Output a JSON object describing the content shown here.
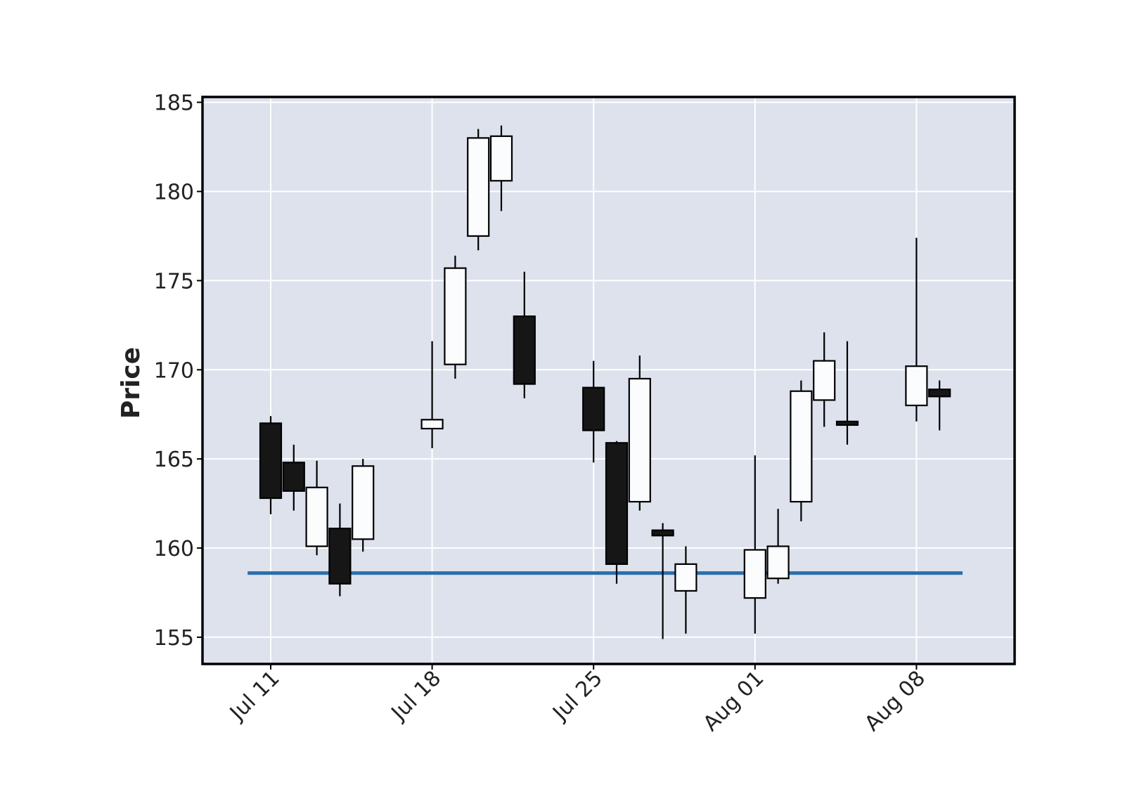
{
  "chart_data": {
    "type": "candlestick",
    "title": "",
    "xlabel": "",
    "ylabel": "Price",
    "ylim": [
      153.5,
      185.3
    ],
    "yticks": [
      155,
      160,
      165,
      170,
      175,
      180,
      185
    ],
    "xticks": [
      {
        "date": "2022-07-11",
        "label": "Jul 11"
      },
      {
        "date": "2022-07-18",
        "label": "Jul 18"
      },
      {
        "date": "2022-07-25",
        "label": "Jul 25"
      },
      {
        "date": "2022-08-01",
        "label": "Aug 01"
      },
      {
        "date": "2022-08-08",
        "label": "Aug 08"
      }
    ],
    "grid": true,
    "colors": {
      "background": "#dde2ed",
      "grid": "#ffffff",
      "up_body": "#fbfcfe",
      "down_body": "#161616",
      "edge": "#000000",
      "hline": "#2c6eac"
    },
    "candles": [
      {
        "date": "2022-07-11",
        "open": 167.0,
        "high": 167.4,
        "low": 161.9,
        "close": 162.8
      },
      {
        "date": "2022-07-12",
        "open": 164.8,
        "high": 165.8,
        "low": 162.1,
        "close": 163.2
      },
      {
        "date": "2022-07-13",
        "open": 160.1,
        "high": 164.9,
        "low": 159.6,
        "close": 163.4
      },
      {
        "date": "2022-07-14",
        "open": 161.1,
        "high": 162.5,
        "low": 157.3,
        "close": 158.0
      },
      {
        "date": "2022-07-15",
        "open": 160.5,
        "high": 165.0,
        "low": 159.8,
        "close": 164.6
      },
      {
        "date": "2022-07-18",
        "open": 166.7,
        "high": 171.6,
        "low": 165.6,
        "close": 167.2
      },
      {
        "date": "2022-07-19",
        "open": 170.3,
        "high": 176.4,
        "low": 169.5,
        "close": 175.7
      },
      {
        "date": "2022-07-20",
        "open": 177.5,
        "high": 183.5,
        "low": 176.7,
        "close": 183.0
      },
      {
        "date": "2022-07-21",
        "open": 180.6,
        "high": 183.7,
        "low": 178.9,
        "close": 183.1
      },
      {
        "date": "2022-07-22",
        "open": 173.0,
        "high": 175.5,
        "low": 168.4,
        "close": 169.2
      },
      {
        "date": "2022-07-25",
        "open": 169.0,
        "high": 170.5,
        "low": 164.8,
        "close": 166.6
      },
      {
        "date": "2022-07-26",
        "open": 165.9,
        "high": 166.0,
        "low": 158.0,
        "close": 159.1
      },
      {
        "date": "2022-07-27",
        "open": 162.6,
        "high": 170.8,
        "low": 162.1,
        "close": 169.5
      },
      {
        "date": "2022-07-28",
        "open": 161.0,
        "high": 161.4,
        "low": 154.9,
        "close": 160.7
      },
      {
        "date": "2022-07-29",
        "open": 157.6,
        "high": 160.1,
        "low": 155.2,
        "close": 159.1
      },
      {
        "date": "2022-08-01",
        "open": 157.2,
        "high": 165.2,
        "low": 155.2,
        "close": 159.9
      },
      {
        "date": "2022-08-02",
        "open": 158.3,
        "high": 162.2,
        "low": 158.0,
        "close": 160.1
      },
      {
        "date": "2022-08-03",
        "open": 162.6,
        "high": 169.4,
        "low": 161.5,
        "close": 168.8
      },
      {
        "date": "2022-08-04",
        "open": 168.3,
        "high": 172.1,
        "low": 166.8,
        "close": 170.5
      },
      {
        "date": "2022-08-05",
        "open": 167.1,
        "high": 171.6,
        "low": 165.8,
        "close": 166.9
      },
      {
        "date": "2022-08-08",
        "open": 168.0,
        "high": 177.4,
        "low": 167.1,
        "close": 170.2
      },
      {
        "date": "2022-08-09",
        "open": 168.9,
        "high": 169.4,
        "low": 166.6,
        "close": 168.5
      }
    ],
    "hlines": [
      {
        "y": 158.6,
        "from": "2022-07-10",
        "to": "2022-08-10"
      }
    ]
  }
}
